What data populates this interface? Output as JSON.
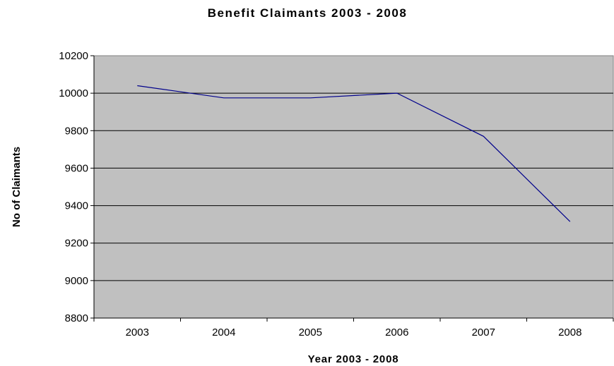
{
  "chart_data": {
    "type": "line",
    "title": "Benefit Claimants 2003 - 2008",
    "xlabel": "Year 2003 - 2008",
    "ylabel": "No of Claimants",
    "categories": [
      "2003",
      "2004",
      "2005",
      "2006",
      "2007",
      "2008"
    ],
    "series": [
      {
        "values": [
          10040,
          9975,
          9975,
          10000,
          9770,
          9315
        ]
      }
    ],
    "ylim": [
      8800,
      10200
    ],
    "yticks": [
      "8800",
      "9000",
      "9200",
      "9400",
      "9600",
      "9800",
      "10000",
      "10200"
    ],
    "grid": true,
    "legend": "none"
  },
  "colors": {
    "plot_background": "#c0c0c0",
    "line": "#00008b",
    "gridlines": "#000000"
  }
}
